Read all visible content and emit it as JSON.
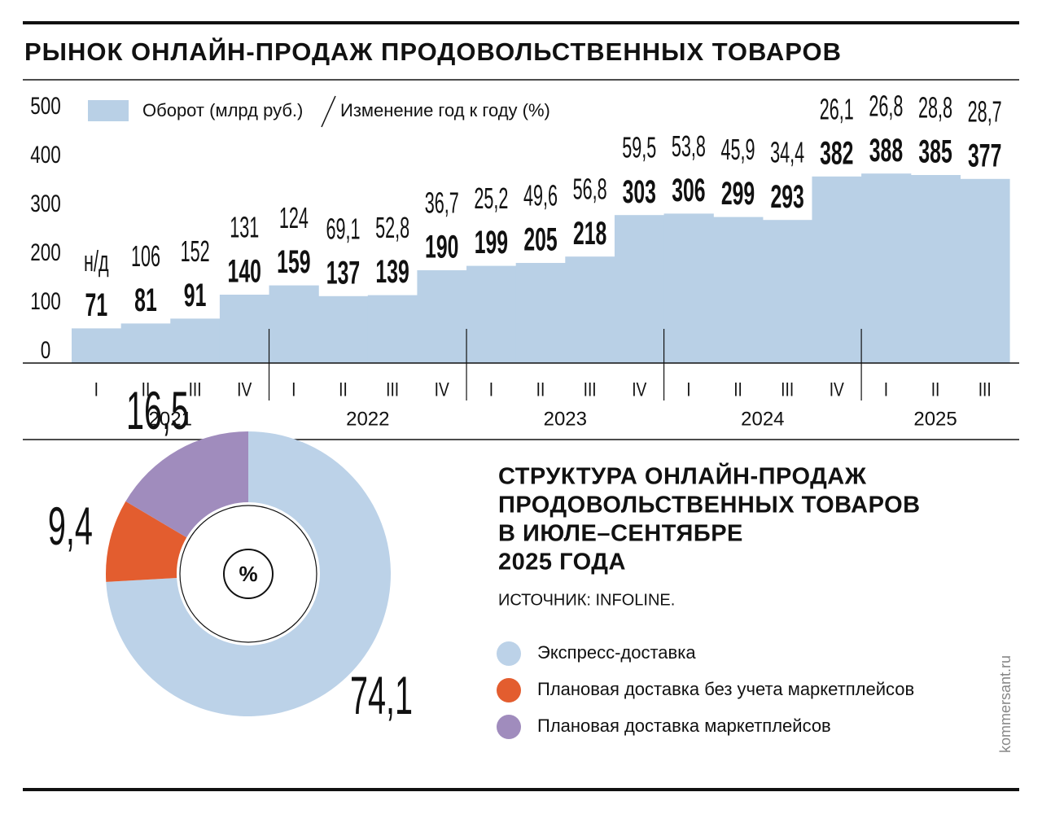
{
  "chart_data": [
    {
      "type": "bar",
      "title": "РЫНОК ОНЛАЙН-ПРОДАЖ ПРОДОВОЛЬСТВЕННЫХ ТОВАРОВ",
      "categories": [
        "I",
        "II",
        "III",
        "IV",
        "I",
        "II",
        "III",
        "IV",
        "I",
        "II",
        "III",
        "IV",
        "I",
        "II",
        "III",
        "IV",
        "I",
        "II",
        "III"
      ],
      "groups": [
        "2021",
        "2022",
        "2023",
        "2024",
        "2025"
      ],
      "series": [
        {
          "name": "Оборот (млрд руб.)",
          "color": "#b9d0e6",
          "values": [
            71,
            81,
            91,
            140,
            159,
            137,
            139,
            190,
            199,
            205,
            218,
            303,
            306,
            299,
            293,
            382,
            388,
            385,
            377
          ]
        },
        {
          "name": "Изменение год к году (%)",
          "values": [
            null,
            106,
            152,
            131,
            124,
            69.1,
            52.8,
            36.7,
            25.2,
            49.6,
            56.8,
            59.5,
            53.8,
            45.9,
            34.4,
            26.1,
            26.8,
            28.8,
            28.7
          ],
          "value_labels": [
            "н/д",
            "106",
            "152",
            "131",
            "124",
            "69,1",
            "52,8",
            "36,7",
            "25,2",
            "49,6",
            "56,8",
            "59,5",
            "53,8",
            "45,9",
            "34,4",
            "26,1",
            "26,8",
            "28,8",
            "28,7"
          ]
        }
      ],
      "ylim": [
        0,
        500
      ],
      "yticks": [
        0,
        100,
        200,
        300,
        400,
        500
      ]
    },
    {
      "type": "pie",
      "title": [
        "СТРУКТУРА ОНЛАЙН-ПРОДАЖ",
        "ПРОДОВОЛЬСТВЕННЫХ ТОВАРОВ",
        "В ИЮЛЕ–СЕНТЯБРЕ",
        "2025 ГОДА"
      ],
      "source": "ИСТОЧНИК: INFOLINE.",
      "center_label": "%",
      "categories": [
        "Экспресс-доставка",
        "Плановая доставка без учета маркетплейсов",
        "Плановая доставка маркетплейсов"
      ],
      "values": [
        74.1,
        9.4,
        16.5
      ],
      "value_labels": [
        "74,1",
        "9,4",
        "16,5"
      ],
      "colors": [
        "#bcd2e8",
        "#e35d2f",
        "#a08cbd"
      ]
    }
  ],
  "credit": "kommersant.ru"
}
